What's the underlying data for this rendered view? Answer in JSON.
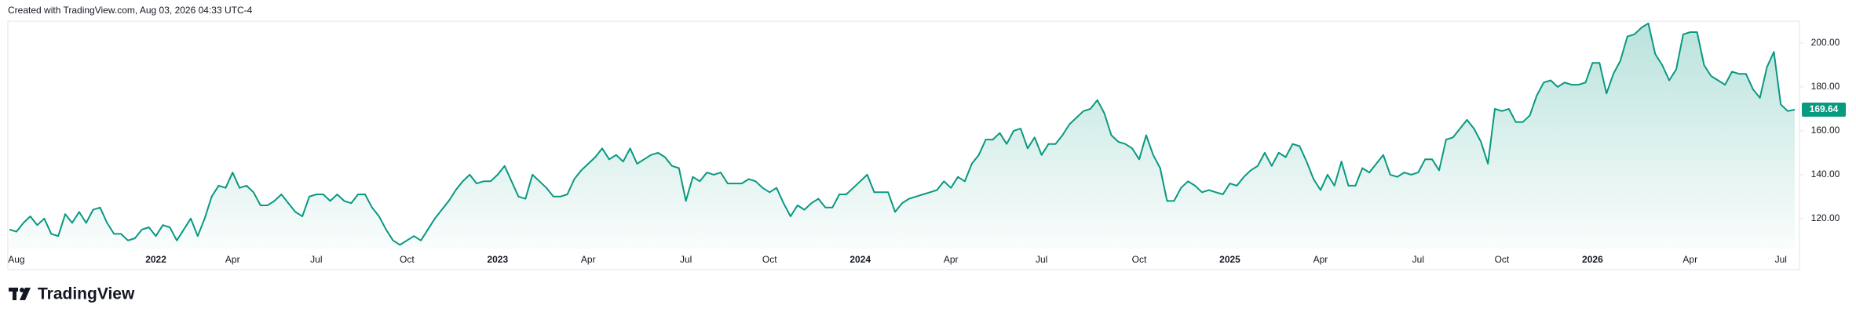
{
  "chart_data": {
    "type": "line",
    "caption": "Created with TradingView.com, Aug 03, 2026 04:33 UTC-4",
    "brand": "TradingView",
    "categories": [
      null,
      "Aug",
      null,
      null,
      null,
      null,
      null,
      null,
      null,
      null,
      null,
      null,
      null,
      null,
      null,
      null,
      null,
      null,
      null,
      null,
      null,
      "2022",
      null,
      null,
      null,
      null,
      null,
      null,
      null,
      null,
      null,
      null,
      "Apr",
      null,
      null,
      null,
      null,
      null,
      null,
      null,
      null,
      null,
      null,
      null,
      "Jul",
      null,
      null,
      null,
      null,
      null,
      null,
      null,
      null,
      null,
      null,
      null,
      null,
      "Oct",
      null,
      null,
      null,
      null,
      null,
      null,
      null,
      null,
      null,
      null,
      null,
      null,
      "2023",
      null,
      null,
      null,
      null,
      null,
      null,
      null,
      null,
      null,
      null,
      null,
      null,
      "Apr",
      null,
      null,
      null,
      null,
      null,
      null,
      null,
      null,
      null,
      null,
      null,
      null,
      null,
      "Jul",
      null,
      null,
      null,
      null,
      null,
      null,
      null,
      null,
      null,
      null,
      null,
      "Oct",
      null,
      null,
      null,
      null,
      null,
      null,
      null,
      null,
      null,
      null,
      null,
      null,
      "2024",
      null,
      null,
      null,
      null,
      null,
      null,
      null,
      null,
      null,
      null,
      null,
      null,
      "Apr",
      null,
      null,
      null,
      null,
      null,
      null,
      null,
      null,
      null,
      null,
      null,
      null,
      "Jul",
      null,
      null,
      null,
      null,
      null,
      null,
      null,
      null,
      null,
      null,
      null,
      null,
      null,
      "Oct",
      null,
      null,
      null,
      null,
      null,
      null,
      null,
      null,
      null,
      null,
      null,
      null,
      "2025",
      null,
      null,
      null,
      null,
      null,
      null,
      null,
      null,
      null,
      null,
      null,
      null,
      "Apr",
      null,
      null,
      null,
      null,
      null,
      null,
      null,
      null,
      null,
      null,
      null,
      null,
      null,
      "Jul",
      null,
      null,
      null,
      null,
      null,
      null,
      null,
      null,
      null,
      null,
      null,
      "Oct",
      null,
      null,
      null,
      null,
      null,
      null,
      null,
      null,
      null,
      null,
      null,
      null,
      "2026",
      null,
      null,
      null,
      null,
      null,
      null,
      null,
      null,
      null,
      null,
      null,
      null,
      null,
      "Apr",
      null,
      null,
      null,
      null,
      null,
      null,
      null,
      null,
      null,
      null,
      null,
      null,
      "Jul",
      null,
      null
    ],
    "series": [
      {
        "color": "#089981",
        "values": [
          115,
          114,
          118,
          121,
          117,
          120,
          113,
          112,
          122,
          118,
          123,
          118,
          124,
          125,
          118,
          113,
          113,
          110,
          111,
          115,
          116,
          112,
          117,
          116,
          110,
          115,
          120,
          112,
          120,
          130,
          135,
          134,
          141,
          134,
          135,
          132,
          126,
          126,
          128,
          131,
          127,
          123,
          121,
          130,
          131,
          131,
          128,
          131,
          128,
          127,
          131,
          131,
          125,
          121,
          115,
          110,
          108,
          110,
          112,
          110,
          115,
          120,
          124,
          128,
          133,
          137,
          140,
          136,
          137,
          137,
          140,
          144,
          137,
          130,
          129,
          140,
          137,
          134,
          130,
          130,
          131,
          138,
          142,
          145,
          148,
          152,
          147,
          149,
          146,
          152,
          145,
          147,
          149,
          150,
          148,
          144,
          143,
          128,
          139,
          137,
          141,
          140,
          141,
          136,
          136,
          136,
          138,
          137,
          134,
          132,
          134,
          127,
          121,
          126,
          124,
          127,
          129,
          125,
          125,
          131,
          131,
          134,
          137,
          140,
          132,
          132,
          132,
          123,
          127,
          129,
          130,
          131,
          132,
          133,
          137,
          134,
          139,
          137,
          145,
          149,
          156,
          156,
          159,
          154,
          160,
          161,
          152,
          157,
          149,
          154,
          154,
          158,
          163,
          166,
          169,
          170,
          174,
          168,
          158,
          155,
          154,
          152,
          147,
          158,
          149,
          143,
          128,
          128,
          134,
          137,
          135,
          132,
          133,
          132,
          131,
          136,
          135,
          139,
          142,
          144,
          150,
          144,
          150,
          148,
          154,
          153,
          146,
          138,
          133,
          140,
          135,
          146,
          135,
          135,
          143,
          141,
          145,
          149,
          140,
          139,
          141,
          140,
          141,
          147,
          147,
          142,
          156,
          157,
          161,
          165,
          161,
          155,
          145,
          170,
          169,
          170,
          164,
          164,
          167,
          176,
          182,
          183,
          180,
          182,
          181,
          181,
          182,
          191,
          191,
          177,
          186,
          192,
          203,
          204,
          207,
          209,
          195,
          190,
          183,
          188,
          204,
          205,
          205,
          190,
          185,
          183,
          181,
          187,
          186,
          186,
          179,
          175,
          189,
          196,
          172,
          169,
          169.64
        ]
      }
    ],
    "ylim": [
      106,
      210
    ],
    "yticks": [
      {
        "value": 120,
        "label": "120.00"
      },
      {
        "value": 140,
        "label": "140.00"
      },
      {
        "value": 160,
        "label": "160.00"
      },
      {
        "value": 180,
        "label": "180.00"
      },
      {
        "value": 200,
        "label": "200.00"
      }
    ],
    "grid": false
  }
}
